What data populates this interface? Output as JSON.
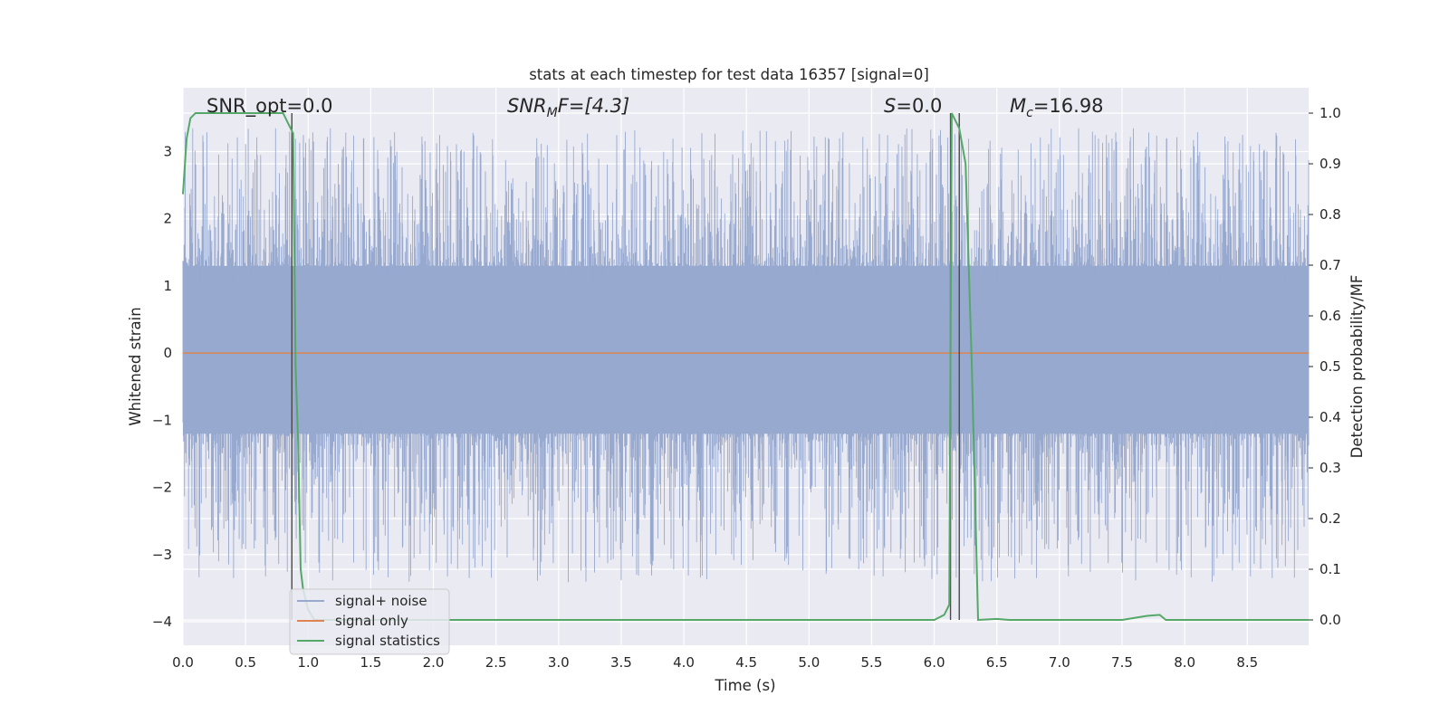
{
  "chart_data": {
    "type": "line",
    "title": "stats at each timestep for test data 16357 [signal=0]",
    "xlabel": "Time (s)",
    "ylabel": "Whitened strain",
    "y2label": "Detection probability/MF",
    "xlim": [
      0.0,
      8.99
    ],
    "ylim": [
      -4.35,
      3.95
    ],
    "y2lim": [
      -0.05,
      1.05
    ],
    "xticks": [
      0.0,
      0.5,
      1.0,
      1.5,
      2.0,
      2.5,
      3.0,
      3.5,
      4.0,
      4.5,
      5.0,
      5.5,
      6.0,
      6.5,
      7.0,
      7.5,
      8.0,
      8.5
    ],
    "xtick_labels": [
      "0.0",
      "0.5",
      "1.0",
      "1.5",
      "2.0",
      "2.5",
      "3.0",
      "3.5",
      "4.0",
      "4.5",
      "5.0",
      "5.5",
      "6.0",
      "6.5",
      "7.0",
      "7.5",
      "8.0",
      "8.5"
    ],
    "yticks": [
      3,
      2,
      1,
      0,
      -1,
      -2,
      -3,
      -4
    ],
    "ytick_labels": [
      "3",
      "2",
      "1",
      "0",
      "−1",
      "−2",
      "−3",
      "−4"
    ],
    "y2ticks": [
      1.0,
      0.9,
      0.8,
      0.7,
      0.6,
      0.5,
      0.4,
      0.3,
      0.2,
      0.1,
      0.0
    ],
    "y2tick_labels": [
      "1.0",
      "0.9",
      "0.8",
      "0.7",
      "0.6",
      "0.5",
      "0.4",
      "0.3",
      "0.2",
      "0.1",
      "0.0"
    ],
    "grid": true,
    "legend_position": "bottom-left",
    "annotations": {
      "snr_opt": "SNR_opt=0.0",
      "snr_mf_sym": "SNR",
      "snr_mf_sub": "M",
      "snr_mf_rest": "F=[4.3]",
      "s_sym": "S",
      "s_rest": "=0.0",
      "mc_sym": "M",
      "mc_sub": "c",
      "mc_rest": "=16.98"
    },
    "vertical_lines_x": [
      0.87,
      6.13,
      6.2
    ],
    "series": [
      {
        "name": "signal+ noise",
        "color": "#97a9cf",
        "noise_envelope": {
          "core": [
            -1.2,
            1.3
          ],
          "spike_max": 3.35,
          "spike_min": -4.0
        }
      },
      {
        "name": "signal only",
        "color": "#dd8452",
        "x": [
          0.0,
          8.99
        ],
        "y": [
          0.0,
          0.0
        ]
      },
      {
        "name": "signal statistics",
        "color": "#55a868",
        "axis": "y2",
        "x": [
          0.0,
          0.03,
          0.06,
          0.1,
          0.2,
          0.4,
          0.6,
          0.8,
          0.84,
          0.88,
          0.9,
          0.92,
          0.94,
          0.96,
          1.0,
          1.05,
          1.1,
          1.2,
          2.0,
          3.0,
          4.0,
          5.0,
          6.0,
          6.08,
          6.12,
          6.14,
          6.2,
          6.25,
          6.3,
          6.35,
          6.5,
          6.6,
          7.0,
          7.5,
          7.7,
          7.8,
          7.85,
          8.0,
          8.5,
          8.99
        ],
        "y": [
          0.84,
          0.95,
          0.99,
          1.0,
          1.0,
          1.0,
          1.0,
          1.0,
          0.98,
          0.96,
          0.5,
          0.35,
          0.1,
          0.06,
          0.02,
          0.0,
          0.0,
          0.0,
          0.0,
          0.0,
          0.0,
          0.0,
          0.0,
          0.01,
          0.03,
          1.0,
          0.97,
          0.9,
          0.5,
          0.0,
          0.002,
          0.0,
          0.0,
          0.0,
          0.008,
          0.01,
          0.0,
          0.0,
          0.0,
          0.0
        ]
      }
    ]
  }
}
